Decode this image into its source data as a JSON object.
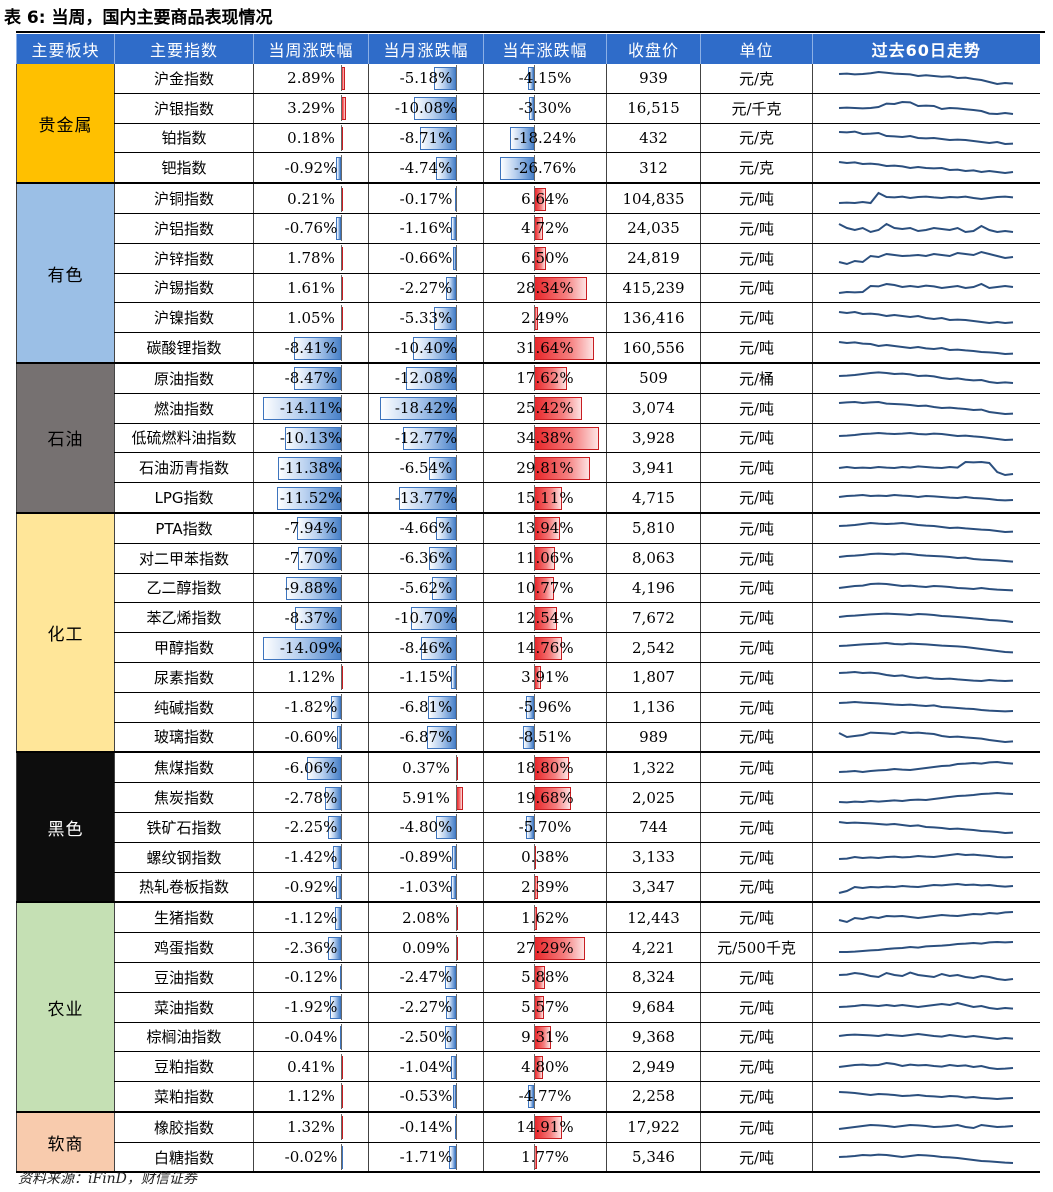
{
  "title": "表 6: 当周，国内主要商品表现情况",
  "source": "资料来源：iFinD，财信证券",
  "headers": [
    "主要板块",
    "主要指数",
    "当周涨跌幅",
    "当月涨跌幅",
    "当年涨跌幅",
    "收盘价",
    "单位",
    "过去60日走势"
  ],
  "colors": {
    "header_bg": "#2f6cc9",
    "neg_bar": "#4a82c9",
    "pos_bar": "#e8262a",
    "sparkline": "#2b4f7e"
  },
  "sectors": [
    {
      "name": "贵金属",
      "color": "#ffc000",
      "text": "#000",
      "rows": 4
    },
    {
      "name": "有色",
      "color": "#9bbfe6",
      "text": "#000",
      "rows": 6
    },
    {
      "name": "石油",
      "color": "#767171",
      "text": "#000",
      "rows": 5
    },
    {
      "name": "化工",
      "color": "#ffe699",
      "text": "#000",
      "rows": 8
    },
    {
      "name": "黑色",
      "color": "#0d0d0d",
      "text": "#fff",
      "rows": 5
    },
    {
      "name": "农业",
      "color": "#c5e0b4",
      "text": "#000",
      "rows": 7
    },
    {
      "name": "软商",
      "color": "#f8cbad",
      "text": "#000",
      "rows": 2
    }
  ],
  "rows": [
    {
      "name": "沪金指数",
      "w": "2.89%",
      "m": "-5.18%",
      "y": "-4.15%",
      "close": "939",
      "unit": "元/克",
      "spark": [
        0.7,
        0.72,
        0.68,
        0.7,
        0.74,
        0.8,
        0.76,
        0.72,
        0.7,
        0.68,
        0.6,
        0.64,
        0.6,
        0.56,
        0.58,
        0.5,
        0.52,
        0.45,
        0.4,
        0.3,
        0.2,
        0.25,
        0.22
      ]
    },
    {
      "name": "沪银指数",
      "w": "3.29%",
      "m": "-10.08%",
      "y": "-3.30%",
      "close": "16,515",
      "unit": "元/千克",
      "spark": [
        0.5,
        0.52,
        0.5,
        0.48,
        0.5,
        0.55,
        0.72,
        0.7,
        0.8,
        0.78,
        0.6,
        0.62,
        0.6,
        0.45,
        0.5,
        0.48,
        0.44,
        0.4,
        0.35,
        0.22,
        0.2,
        0.25,
        0.2
      ]
    },
    {
      "name": "铂指数",
      "w": "0.18%",
      "m": "-8.71%",
      "y": "-18.24%",
      "close": "432",
      "unit": "元/克",
      "spark": [
        0.8,
        0.78,
        0.82,
        0.7,
        0.72,
        0.75,
        0.6,
        0.58,
        0.55,
        0.6,
        0.5,
        0.48,
        0.5,
        0.45,
        0.4,
        0.42,
        0.4,
        0.35,
        0.3,
        0.25,
        0.3,
        0.2,
        0.22
      ]
    },
    {
      "name": "钯指数",
      "w": "-0.92%",
      "m": "-4.74%",
      "y": "-26.76%",
      "close": "312",
      "unit": "元/克",
      "spark": [
        0.8,
        0.75,
        0.78,
        0.7,
        0.72,
        0.68,
        0.6,
        0.62,
        0.58,
        0.5,
        0.55,
        0.5,
        0.48,
        0.5,
        0.4,
        0.42,
        0.35,
        0.38,
        0.3,
        0.35,
        0.3,
        0.25,
        0.3
      ]
    },
    {
      "name": "沪铜指数",
      "w": "0.21%",
      "m": "-0.17%",
      "y": "6.64%",
      "close": "104,835",
      "unit": "元/吨",
      "spark": [
        0.3,
        0.32,
        0.3,
        0.35,
        0.3,
        0.8,
        0.6,
        0.58,
        0.62,
        0.55,
        0.6,
        0.62,
        0.58,
        0.55,
        0.6,
        0.58,
        0.62,
        0.55,
        0.5,
        0.55,
        0.6,
        0.62,
        0.58
      ]
    },
    {
      "name": "沪铝指数",
      "w": "-0.76%",
      "m": "-1.16%",
      "y": "4.72%",
      "close": "24,035",
      "unit": "元/吨",
      "spark": [
        0.7,
        0.5,
        0.4,
        0.5,
        0.3,
        0.4,
        0.7,
        0.5,
        0.45,
        0.5,
        0.35,
        0.4,
        0.5,
        0.45,
        0.4,
        0.5,
        0.3,
        0.35,
        0.6,
        0.4,
        0.3,
        0.35,
        0.3
      ]
    },
    {
      "name": "沪锌指数",
      "w": "1.78%",
      "m": "-0.66%",
      "y": "6.50%",
      "close": "24,819",
      "unit": "元/吨",
      "spark": [
        0.3,
        0.2,
        0.35,
        0.3,
        0.6,
        0.55,
        0.7,
        0.65,
        0.6,
        0.62,
        0.65,
        0.6,
        0.7,
        0.65,
        0.6,
        0.75,
        0.7,
        0.65,
        0.8,
        0.7,
        0.6,
        0.5,
        0.55
      ]
    },
    {
      "name": "沪锡指数",
      "w": "1.61%",
      "m": "-2.27%",
      "y": "28.34%",
      "close": "415,239",
      "unit": "元/吨",
      "spark": [
        0.25,
        0.3,
        0.28,
        0.3,
        0.6,
        0.58,
        0.7,
        0.65,
        0.55,
        0.6,
        0.55,
        0.62,
        0.58,
        0.5,
        0.55,
        0.6,
        0.5,
        0.55,
        0.7,
        0.5,
        0.55,
        0.6,
        0.55
      ]
    },
    {
      "name": "沪镍指数",
      "w": "1.05%",
      "m": "-5.33%",
      "y": "2.49%",
      "close": "136,416",
      "unit": "元/吨",
      "spark": [
        0.8,
        0.75,
        0.8,
        0.7,
        0.72,
        0.68,
        0.6,
        0.65,
        0.6,
        0.55,
        0.6,
        0.5,
        0.45,
        0.5,
        0.4,
        0.42,
        0.4,
        0.35,
        0.3,
        0.25,
        0.3,
        0.25,
        0.28
      ]
    },
    {
      "name": "碳酸锂指数",
      "w": "-8.41%",
      "m": "-10.40%",
      "y": "31.64%",
      "close": "160,556",
      "unit": "元/吨",
      "spark": [
        0.8,
        0.75,
        0.78,
        0.72,
        0.7,
        0.6,
        0.65,
        0.6,
        0.55,
        0.5,
        0.55,
        0.48,
        0.45,
        0.5,
        0.4,
        0.42,
        0.38,
        0.35,
        0.3,
        0.28,
        0.25,
        0.2,
        0.22
      ]
    },
    {
      "name": "原油指数",
      "w": "-8.47%",
      "m": "-12.08%",
      "y": "17.62%",
      "close": "509",
      "unit": "元/桶",
      "spark": [
        0.6,
        0.62,
        0.65,
        0.7,
        0.75,
        0.78,
        0.75,
        0.7,
        0.72,
        0.68,
        0.6,
        0.62,
        0.58,
        0.5,
        0.45,
        0.48,
        0.42,
        0.38,
        0.4,
        0.3,
        0.25,
        0.28,
        0.25
      ]
    },
    {
      "name": "燃油指数",
      "w": "-14.11%",
      "m": "-18.42%",
      "y": "25.42%",
      "close": "3,074",
      "unit": "元/吨",
      "spark": [
        0.75,
        0.78,
        0.8,
        0.75,
        0.78,
        0.8,
        0.72,
        0.7,
        0.68,
        0.65,
        0.6,
        0.62,
        0.55,
        0.5,
        0.52,
        0.48,
        0.45,
        0.4,
        0.42,
        0.3,
        0.25,
        0.2,
        0.22
      ]
    },
    {
      "name": "低硫燃料油指数",
      "w": "-10.13%",
      "m": "-12.77%",
      "y": "34.38%",
      "close": "3,928",
      "unit": "元/吨",
      "spark": [
        0.6,
        0.62,
        0.65,
        0.7,
        0.72,
        0.75,
        0.72,
        0.7,
        0.72,
        0.75,
        0.7,
        0.68,
        0.72,
        0.7,
        0.65,
        0.6,
        0.62,
        0.58,
        0.55,
        0.5,
        0.45,
        0.4,
        0.42
      ]
    },
    {
      "name": "石油沥青指数",
      "w": "-11.38%",
      "m": "-6.54%",
      "y": "29.81%",
      "close": "3,941",
      "unit": "元/吨",
      "spark": [
        0.5,
        0.55,
        0.5,
        0.52,
        0.5,
        0.55,
        0.52,
        0.5,
        0.55,
        0.52,
        0.58,
        0.55,
        0.52,
        0.5,
        0.55,
        0.52,
        0.8,
        0.78,
        0.8,
        0.75,
        0.3,
        0.15,
        0.2
      ]
    },
    {
      "name": "LPG指数",
      "w": "-11.52%",
      "m": "-13.77%",
      "y": "15.11%",
      "close": "4,715",
      "unit": "元/吨",
      "spark": [
        0.55,
        0.6,
        0.62,
        0.65,
        0.6,
        0.62,
        0.6,
        0.65,
        0.62,
        0.6,
        0.55,
        0.6,
        0.58,
        0.55,
        0.52,
        0.5,
        0.55,
        0.5,
        0.48,
        0.45,
        0.4,
        0.38,
        0.4
      ]
    },
    {
      "name": "PTA指数",
      "w": "-7.94%",
      "m": "-4.66%",
      "y": "13.94%",
      "close": "5,810",
      "unit": "元/吨",
      "spark": [
        0.6,
        0.62,
        0.65,
        0.7,
        0.75,
        0.72,
        0.7,
        0.72,
        0.75,
        0.7,
        0.65,
        0.62,
        0.6,
        0.55,
        0.5,
        0.52,
        0.48,
        0.45,
        0.42,
        0.4,
        0.35,
        0.3,
        0.32
      ]
    },
    {
      "name": "对二甲苯指数",
      "w": "-7.70%",
      "m": "-6.36%",
      "y": "11.06%",
      "close": "8,063",
      "unit": "元/吨",
      "spark": [
        0.55,
        0.6,
        0.62,
        0.65,
        0.7,
        0.72,
        0.7,
        0.68,
        0.72,
        0.7,
        0.65,
        0.62,
        0.6,
        0.58,
        0.55,
        0.5,
        0.52,
        0.45,
        0.42,
        0.4,
        0.38,
        0.35,
        0.32
      ]
    },
    {
      "name": "乙二醇指数",
      "w": "-9.88%",
      "m": "-5.62%",
      "y": "10.77%",
      "close": "4,196",
      "unit": "元/吨",
      "spark": [
        0.5,
        0.55,
        0.6,
        0.62,
        0.7,
        0.72,
        0.7,
        0.65,
        0.6,
        0.62,
        0.58,
        0.55,
        0.6,
        0.58,
        0.55,
        0.5,
        0.48,
        0.45,
        0.5,
        0.45,
        0.42,
        0.4,
        0.38
      ]
    },
    {
      "name": "苯乙烯指数",
      "w": "-8.37%",
      "m": "-10.70%",
      "y": "12.54%",
      "close": "7,672",
      "unit": "元/吨",
      "spark": [
        0.55,
        0.6,
        0.62,
        0.65,
        0.68,
        0.7,
        0.72,
        0.7,
        0.68,
        0.65,
        0.7,
        0.68,
        0.65,
        0.6,
        0.58,
        0.55,
        0.52,
        0.48,
        0.45,
        0.4,
        0.38,
        0.35,
        0.3
      ]
    },
    {
      "name": "甲醇指数",
      "w": "-14.09%",
      "m": "-8.46%",
      "y": "14.76%",
      "close": "2,542",
      "unit": "元/吨",
      "spark": [
        0.6,
        0.62,
        0.65,
        0.68,
        0.7,
        0.72,
        0.75,
        0.7,
        0.68,
        0.72,
        0.7,
        0.68,
        0.65,
        0.62,
        0.6,
        0.58,
        0.55,
        0.5,
        0.45,
        0.4,
        0.35,
        0.3,
        0.28
      ]
    },
    {
      "name": "尿素指数",
      "w": "1.12%",
      "m": "-1.15%",
      "y": "3.91%",
      "close": "1,807",
      "unit": "元/吨",
      "spark": [
        0.7,
        0.72,
        0.75,
        0.7,
        0.72,
        0.68,
        0.6,
        0.55,
        0.58,
        0.5,
        0.45,
        0.48,
        0.42,
        0.4,
        0.42,
        0.38,
        0.35,
        0.32,
        0.3,
        0.35,
        0.32,
        0.3,
        0.32
      ]
    },
    {
      "name": "纯碱指数",
      "w": "-1.82%",
      "m": "-6.81%",
      "y": "-5.96%",
      "close": "1,136",
      "unit": "元/吨",
      "spark": [
        0.7,
        0.72,
        0.75,
        0.72,
        0.7,
        0.68,
        0.65,
        0.62,
        0.6,
        0.62,
        0.58,
        0.55,
        0.58,
        0.5,
        0.48,
        0.45,
        0.42,
        0.4,
        0.35,
        0.32,
        0.3,
        0.28,
        0.3
      ]
    },
    {
      "name": "玻璃指数",
      "w": "-0.60%",
      "m": "-6.87%",
      "y": "-8.51%",
      "close": "989",
      "unit": "元/吨",
      "spark": [
        0.7,
        0.5,
        0.55,
        0.6,
        0.72,
        0.7,
        0.68,
        0.65,
        0.75,
        0.7,
        0.72,
        0.68,
        0.65,
        0.55,
        0.5,
        0.52,
        0.48,
        0.45,
        0.42,
        0.35,
        0.3,
        0.25,
        0.28
      ]
    },
    {
      "name": "焦煤指数",
      "w": "-6.06%",
      "m": "0.37%",
      "y": "18.80%",
      "close": "1,322",
      "unit": "元/吨",
      "spark": [
        0.3,
        0.32,
        0.35,
        0.3,
        0.35,
        0.38,
        0.4,
        0.45,
        0.42,
        0.4,
        0.45,
        0.5,
        0.55,
        0.6,
        0.62,
        0.7,
        0.72,
        0.75,
        0.72,
        0.78,
        0.8,
        0.75,
        0.72
      ]
    },
    {
      "name": "焦炭指数",
      "w": "-2.78%",
      "m": "5.91%",
      "y": "19.68%",
      "close": "2,025",
      "unit": "元/吨",
      "spark": [
        0.3,
        0.28,
        0.32,
        0.3,
        0.35,
        0.32,
        0.35,
        0.38,
        0.35,
        0.4,
        0.42,
        0.4,
        0.45,
        0.5,
        0.55,
        0.6,
        0.62,
        0.65,
        0.7,
        0.72,
        0.75,
        0.72,
        0.7
      ]
    },
    {
      "name": "铁矿石指数",
      "w": "-2.25%",
      "m": "-4.80%",
      "y": "-5.70%",
      "close": "744",
      "unit": "元/吨",
      "spark": [
        0.75,
        0.7,
        0.72,
        0.7,
        0.68,
        0.65,
        0.62,
        0.65,
        0.6,
        0.55,
        0.58,
        0.5,
        0.48,
        0.45,
        0.4,
        0.42,
        0.38,
        0.35,
        0.3,
        0.28,
        0.25,
        0.2,
        0.22
      ]
    },
    {
      "name": "螺纹钢指数",
      "w": "-1.42%",
      "m": "-0.89%",
      "y": "0.38%",
      "close": "3,133",
      "unit": "元/吨",
      "spark": [
        0.4,
        0.42,
        0.5,
        0.45,
        0.48,
        0.45,
        0.5,
        0.52,
        0.48,
        0.5,
        0.55,
        0.52,
        0.5,
        0.55,
        0.6,
        0.65,
        0.6,
        0.62,
        0.58,
        0.55,
        0.5,
        0.48,
        0.5
      ]
    },
    {
      "name": "热轧卷板指数",
      "w": "-0.92%",
      "m": "-1.03%",
      "y": "2.39%",
      "close": "3,347",
      "unit": "元/吨",
      "spark": [
        0.2,
        0.3,
        0.5,
        0.45,
        0.5,
        0.48,
        0.52,
        0.5,
        0.55,
        0.52,
        0.5,
        0.55,
        0.6,
        0.58,
        0.62,
        0.65,
        0.6,
        0.62,
        0.58,
        0.6,
        0.55,
        0.52,
        0.55
      ]
    },
    {
      "name": "生猪指数",
      "w": "-1.12%",
      "m": "2.08%",
      "y": "1.62%",
      "close": "12,443",
      "unit": "元/吨",
      "spark": [
        0.4,
        0.3,
        0.5,
        0.45,
        0.55,
        0.5,
        0.6,
        0.58,
        0.6,
        0.55,
        0.5,
        0.55,
        0.6,
        0.65,
        0.62,
        0.6,
        0.65,
        0.7,
        0.68,
        0.75,
        0.72,
        0.78,
        0.8
      ]
    },
    {
      "name": "鸡蛋指数",
      "w": "-2.36%",
      "m": "0.09%",
      "y": "27.29%",
      "close": "4,221",
      "unit": "元/500千克",
      "spark": [
        0.3,
        0.3,
        0.32,
        0.35,
        0.38,
        0.4,
        0.45,
        0.48,
        0.5,
        0.55,
        0.52,
        0.58,
        0.6,
        0.62,
        0.65,
        0.7,
        0.72,
        0.75,
        0.72,
        0.78,
        0.8,
        0.78,
        0.8
      ]
    },
    {
      "name": "豆油指数",
      "w": "-0.12%",
      "m": "-2.47%",
      "y": "5.88%",
      "close": "8,324",
      "unit": "元/吨",
      "spark": [
        0.6,
        0.62,
        0.7,
        0.65,
        0.55,
        0.5,
        0.7,
        0.6,
        0.55,
        0.72,
        0.6,
        0.55,
        0.5,
        0.65,
        0.55,
        0.6,
        0.5,
        0.45,
        0.55,
        0.5,
        0.4,
        0.35,
        0.4
      ]
    },
    {
      "name": "菜油指数",
      "w": "-1.92%",
      "m": "-2.27%",
      "y": "5.57%",
      "close": "9,684",
      "unit": "元/吨",
      "spark": [
        0.5,
        0.52,
        0.55,
        0.6,
        0.58,
        0.55,
        0.6,
        0.55,
        0.6,
        0.55,
        0.5,
        0.55,
        0.6,
        0.65,
        0.6,
        0.7,
        0.6,
        0.5,
        0.55,
        0.45,
        0.4,
        0.45,
        0.42
      ]
    },
    {
      "name": "棕榈油指数",
      "w": "-0.04%",
      "m": "-2.50%",
      "y": "9.31%",
      "close": "9,368",
      "unit": "元/吨",
      "spark": [
        0.55,
        0.6,
        0.62,
        0.6,
        0.58,
        0.55,
        0.62,
        0.58,
        0.55,
        0.6,
        0.65,
        0.6,
        0.55,
        0.52,
        0.6,
        0.55,
        0.5,
        0.55,
        0.5,
        0.45,
        0.4,
        0.45,
        0.42
      ]
    },
    {
      "name": "豆粕指数",
      "w": "0.41%",
      "m": "-1.04%",
      "y": "4.80%",
      "close": "2,949",
      "unit": "元/吨",
      "spark": [
        0.5,
        0.55,
        0.6,
        0.62,
        0.58,
        0.6,
        0.7,
        0.65,
        0.55,
        0.62,
        0.58,
        0.6,
        0.55,
        0.52,
        0.6,
        0.55,
        0.58,
        0.5,
        0.55,
        0.45,
        0.4,
        0.42,
        0.45
      ]
    },
    {
      "name": "菜粕指数",
      "w": "1.12%",
      "m": "-0.53%",
      "y": "-4.77%",
      "close": "2,258",
      "unit": "元/吨",
      "spark": [
        0.7,
        0.68,
        0.65,
        0.6,
        0.55,
        0.6,
        0.58,
        0.55,
        0.5,
        0.52,
        0.55,
        0.5,
        0.48,
        0.45,
        0.5,
        0.48,
        0.42,
        0.45,
        0.4,
        0.38,
        0.35,
        0.38,
        0.4
      ]
    },
    {
      "name": "橡胶指数",
      "w": "1.32%",
      "m": "-0.14%",
      "y": "14.91%",
      "close": "17,922",
      "unit": "元/吨",
      "spark": [
        0.4,
        0.45,
        0.5,
        0.55,
        0.6,
        0.58,
        0.55,
        0.5,
        0.55,
        0.6,
        0.58,
        0.55,
        0.5,
        0.52,
        0.55,
        0.6,
        0.5,
        0.45,
        0.6,
        0.55,
        0.5,
        0.52,
        0.55
      ]
    },
    {
      "name": "白糖指数",
      "w": "-0.02%",
      "m": "-1.71%",
      "y": "1.77%",
      "close": "5,346",
      "unit": "元/吨",
      "spark": [
        0.5,
        0.52,
        0.55,
        0.6,
        0.58,
        0.62,
        0.6,
        0.55,
        0.5,
        0.55,
        0.6,
        0.58,
        0.55,
        0.5,
        0.48,
        0.45,
        0.4,
        0.35,
        0.3,
        0.28,
        0.25,
        0.22,
        0.2
      ]
    }
  ]
}
